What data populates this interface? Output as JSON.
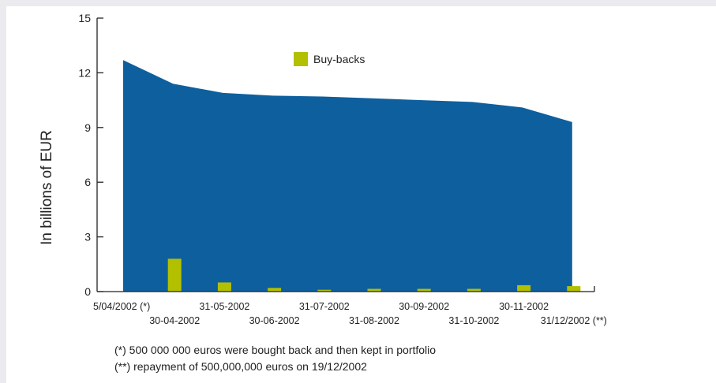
{
  "chart_data": {
    "type": "area",
    "ylabel": "In billions of EUR",
    "ylim": [
      0,
      15
    ],
    "yticks": [
      0,
      3,
      6,
      9,
      12,
      15
    ],
    "categories": [
      "5/04/2002 (*)",
      "30-04-2002",
      "31-05-2002",
      "30-06-2002",
      "31-07-2002",
      "31-08-2002",
      "30-09-2002",
      "31-10-2002",
      "30-11-2002",
      "31/12/2002 (**)"
    ],
    "series": [
      {
        "kind": "area",
        "color": "#0e5f9e",
        "values": [
          12.7,
          11.4,
          10.9,
          10.75,
          10.7,
          10.6,
          10.5,
          10.4,
          10.1,
          9.3
        ]
      },
      {
        "name": "Buy-backs",
        "kind": "bar",
        "color": "#b3c000",
        "values": [
          0,
          1.8,
          0.5,
          0.2,
          0.1,
          0.15,
          0.15,
          0.15,
          0.35,
          0.3
        ]
      }
    ],
    "legend": {
      "position": "top-center",
      "label": "Buy-backs"
    }
  },
  "footnotes": {
    "note1": "(*)  500 000 000 euros were bought back and then kept in portfolio",
    "note2": "(**) repayment of 500,000,000 euros on 19/12/2002"
  }
}
